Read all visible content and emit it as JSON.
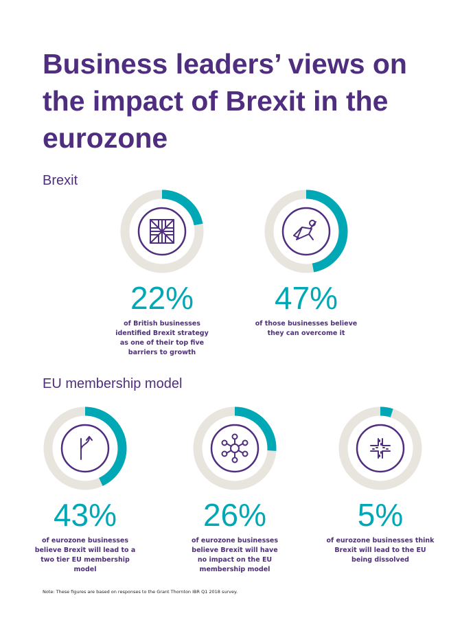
{
  "title": "Business leaders’ views on the impact of Brexit in the eurozone",
  "colors": {
    "title": "#4f2d7f",
    "accent": "#00a7b5",
    "track": "#e8e5de",
    "icon": "#4f2d7f"
  },
  "sections": [
    {
      "heading": "Brexit"
    },
    {
      "heading": "EU membership model"
    }
  ],
  "chart_data": {
    "type": "pie",
    "subtype": "donut",
    "items": [
      {
        "section": "Brexit",
        "value": 22,
        "label": "22%",
        "icon": "union-jack-icon",
        "caption": "of British businesses identified Brexit strategy as one of their top five barriers to growth"
      },
      {
        "section": "Brexit",
        "value": 47,
        "label": "47%",
        "icon": "superhero-icon",
        "caption": "of those businesses believe they can overcome it"
      },
      {
        "section": "EU membership model",
        "value": 43,
        "label": "43%",
        "icon": "road-fork-icon",
        "caption": "of eurozone businesses believe Brexit will lead to a two tier EU membership model"
      },
      {
        "section": "EU membership model",
        "value": 26,
        "label": "26%",
        "icon": "network-hub-icon",
        "caption": "of eurozone businesses believe Brexit will have no impact on the EU membership model"
      },
      {
        "section": "EU membership model",
        "value": 5,
        "label": "5%",
        "icon": "broken-cross-icon",
        "caption": "of eurozone businesses think Brexit will lead to the EU being dissolved"
      }
    ]
  },
  "note": "Note:  These figures are based on responses to the Grant Thornton IBR Q1 2018 survey."
}
